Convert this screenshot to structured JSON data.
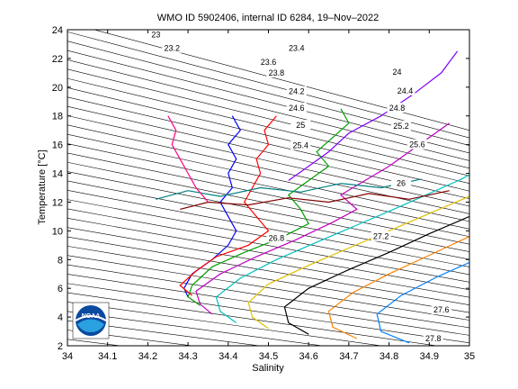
{
  "chart_data": {
    "type": "scatter",
    "title": "WMO ID 5902406, internal ID 6284, 19–Nov–2022",
    "xlabel": "Salinity",
    "ylabel": "Temperature [°C]",
    "xlim": [
      34,
      35
    ],
    "ylim": [
      2,
      24
    ],
    "xticks": [
      "34",
      "34.1",
      "34.2",
      "34.3",
      "34.4",
      "34.5",
      "34.6",
      "34.7",
      "34.8",
      "34.9",
      "35"
    ],
    "yticks": [
      "2",
      "4",
      "6",
      "8",
      "10",
      "12",
      "14",
      "16",
      "18",
      "20",
      "22",
      "24"
    ],
    "grid": false,
    "density_contour_labels": [
      {
        "label": "23",
        "s": 34.22,
        "t": 23.65
      },
      {
        "label": "23.2",
        "s": 34.26,
        "t": 22.7
      },
      {
        "label": "23.4",
        "s": 34.57,
        "t": 22.7
      },
      {
        "label": "23.6",
        "s": 34.5,
        "t": 21.75
      },
      {
        "label": "23.8",
        "s": 34.52,
        "t": 21.0
      },
      {
        "label": "24",
        "s": 34.82,
        "t": 21.05
      },
      {
        "label": "24.2",
        "s": 34.57,
        "t": 19.7
      },
      {
        "label": "24.4",
        "s": 34.84,
        "t": 19.75
      },
      {
        "label": "24.6",
        "s": 34.57,
        "t": 18.55
      },
      {
        "label": "24.8",
        "s": 34.82,
        "t": 18.55
      },
      {
        "label": "25",
        "s": 34.58,
        "t": 17.35
      },
      {
        "label": "25.2",
        "s": 34.83,
        "t": 17.3
      },
      {
        "label": "25.4",
        "s": 34.58,
        "t": 15.95
      },
      {
        "label": "25.6",
        "s": 34.87,
        "t": 16.0
      },
      {
        "label": "26",
        "s": 34.83,
        "t": 13.3
      },
      {
        "label": "26.8",
        "s": 34.52,
        "t": 9.5
      },
      {
        "label": "27.2",
        "s": 34.78,
        "t": 9.6
      },
      {
        "label": "27.6",
        "s": 34.93,
        "t": 4.5
      },
      {
        "label": "27.8",
        "s": 34.91,
        "t": 2.5
      }
    ],
    "isopycnal_count": 36,
    "series": [
      {
        "values": [
          [
            34.3,
            5.4
          ],
          [
            34.29,
            6.0
          ],
          [
            34.31,
            7.0
          ],
          [
            34.36,
            8.0
          ],
          [
            34.4,
            9.0
          ],
          [
            34.42,
            10.0
          ],
          [
            34.4,
            11.0
          ],
          [
            34.38,
            12.0
          ],
          [
            34.41,
            13.0
          ],
          [
            34.4,
            14.0
          ],
          [
            34.42,
            15.0
          ],
          [
            34.4,
            16.0
          ],
          [
            34.43,
            17.0
          ],
          [
            34.41,
            18.0
          ]
        ]
      },
      {
        "values": [
          [
            34.31,
            5.5
          ],
          [
            34.28,
            6.2
          ],
          [
            34.32,
            7.2
          ],
          [
            34.37,
            8.2
          ],
          [
            34.45,
            9.0
          ],
          [
            34.5,
            10.0
          ],
          [
            34.47,
            11.0
          ],
          [
            34.44,
            12.0
          ],
          [
            34.46,
            13.0
          ],
          [
            34.48,
            14.0
          ],
          [
            34.47,
            15.0
          ],
          [
            34.5,
            16.0
          ],
          [
            34.49,
            17.0
          ],
          [
            34.52,
            18.0
          ]
        ]
      },
      {
        "values": [
          [
            34.33,
            4.8
          ],
          [
            34.3,
            5.4
          ],
          [
            34.31,
            6.2
          ],
          [
            34.36,
            7.5
          ],
          [
            34.44,
            8.5
          ],
          [
            34.53,
            9.5
          ],
          [
            34.6,
            10.5
          ],
          [
            34.58,
            11.5
          ],
          [
            34.55,
            12.5
          ],
          [
            34.6,
            13.5
          ],
          [
            34.65,
            14.5
          ],
          [
            34.62,
            15.5
          ],
          [
            34.66,
            16.5
          ],
          [
            34.7,
            17.5
          ],
          [
            34.68,
            18.5
          ]
        ]
      },
      {
        "values": [
          [
            34.36,
            4.2
          ],
          [
            34.33,
            4.9
          ],
          [
            34.32,
            5.8
          ],
          [
            34.38,
            7.0
          ],
          [
            34.47,
            8.2
          ],
          [
            34.57,
            9.4
          ],
          [
            34.66,
            10.6
          ],
          [
            34.72,
            11.5
          ],
          [
            34.68,
            12.5
          ],
          [
            34.74,
            13.5
          ],
          [
            34.8,
            14.5
          ],
          [
            34.85,
            15.5
          ],
          [
            34.9,
            16.5
          ],
          [
            34.95,
            17.5
          ]
        ]
      },
      {
        "values": [
          [
            34.42,
            3.6
          ],
          [
            34.38,
            4.4
          ],
          [
            34.37,
            5.4
          ],
          [
            34.43,
            6.7
          ],
          [
            34.52,
            8.0
          ],
          [
            34.62,
            9.2
          ],
          [
            34.72,
            10.4
          ],
          [
            34.82,
            11.6
          ],
          [
            34.9,
            12.6
          ],
          [
            34.98,
            13.6
          ],
          [
            35.0,
            13.9
          ]
        ]
      },
      {
        "values": [
          [
            34.5,
            3.2
          ],
          [
            34.46,
            4.0
          ],
          [
            34.45,
            5.0
          ],
          [
            34.5,
            6.3
          ],
          [
            34.6,
            7.6
          ],
          [
            34.7,
            8.8
          ],
          [
            34.8,
            10.0
          ],
          [
            34.9,
            11.2
          ],
          [
            35.0,
            12.4
          ]
        ]
      },
      {
        "values": [
          [
            34.6,
            2.8
          ],
          [
            34.55,
            3.6
          ],
          [
            34.54,
            4.7
          ],
          [
            34.6,
            6.0
          ],
          [
            34.7,
            7.3
          ],
          [
            34.8,
            8.5
          ],
          [
            34.9,
            9.8
          ],
          [
            35.0,
            11.0
          ]
        ]
      },
      {
        "values": [
          [
            34.72,
            2.5
          ],
          [
            34.66,
            3.3
          ],
          [
            34.65,
            4.4
          ],
          [
            34.71,
            5.7
          ],
          [
            34.8,
            7.0
          ],
          [
            34.9,
            8.3
          ],
          [
            35.0,
            9.6
          ]
        ]
      },
      {
        "values": [
          [
            34.85,
            2.2
          ],
          [
            34.78,
            3.0
          ],
          [
            34.77,
            4.2
          ],
          [
            34.83,
            5.5
          ],
          [
            34.92,
            6.8
          ],
          [
            35.0,
            7.8
          ]
        ]
      },
      {
        "values": [
          [
            34.28,
            11.5
          ],
          [
            34.35,
            12.0
          ],
          [
            34.45,
            11.8
          ],
          [
            34.55,
            12.3
          ],
          [
            34.65,
            12.0
          ],
          [
            34.75,
            12.6
          ],
          [
            34.85,
            12.2
          ],
          [
            34.95,
            12.8
          ]
        ]
      },
      {
        "values": [
          [
            34.22,
            12.2
          ],
          [
            34.3,
            12.8
          ],
          [
            34.38,
            12.4
          ],
          [
            34.48,
            13.0
          ],
          [
            34.58,
            12.7
          ],
          [
            34.68,
            13.3
          ],
          [
            34.78,
            13.0
          ],
          [
            34.88,
            13.6
          ]
        ]
      },
      {
        "values": [
          [
            34.55,
            13.5
          ],
          [
            34.6,
            14.5
          ],
          [
            34.65,
            15.5
          ],
          [
            34.7,
            16.8
          ],
          [
            34.78,
            18.0
          ],
          [
            34.86,
            19.5
          ],
          [
            34.93,
            21.0
          ],
          [
            34.97,
            22.5
          ]
        ]
      },
      {
        "values": [
          [
            34.35,
            12.0
          ],
          [
            34.32,
            13.0
          ],
          [
            34.3,
            14.0
          ],
          [
            34.28,
            15.0
          ],
          [
            34.26,
            16.0
          ],
          [
            34.27,
            17.0
          ],
          [
            34.25,
            18.0
          ]
        ]
      }
    ],
    "series_colors": [
      "#0000ff",
      "#ff0000",
      "#00a000",
      "#c000c0",
      "#00c0c0",
      "#e0c000",
      "#000000",
      "#ff8000",
      "#0080ff",
      "#800000",
      "#008080",
      "#8000ff",
      "#ff0080"
    ]
  },
  "logo": {
    "text": "NOAA"
  }
}
